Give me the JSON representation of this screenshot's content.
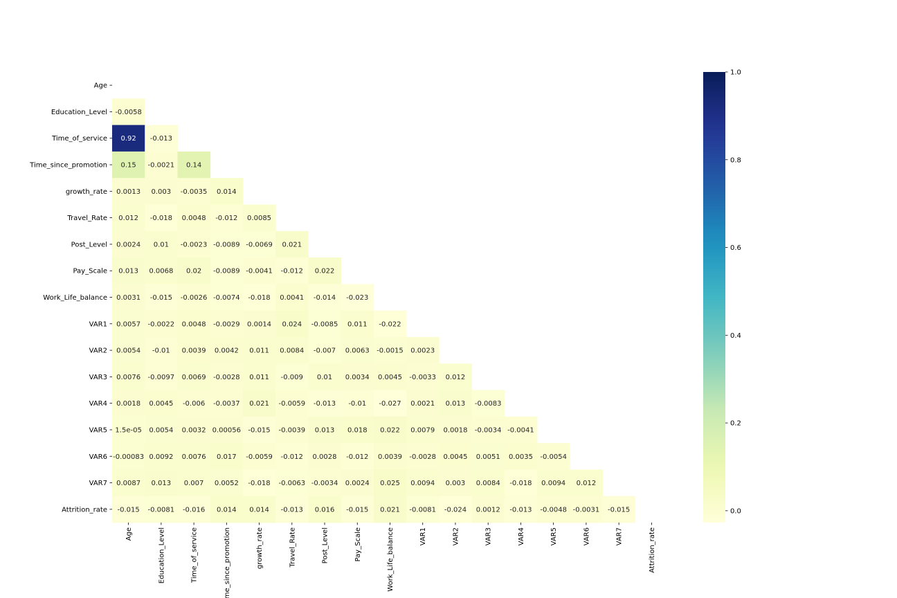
{
  "chart_data": {
    "type": "heatmap",
    "title": "",
    "xlabel": "",
    "ylabel": "",
    "mask": "upper-triangle-including-diagonal",
    "labels": [
      "Age",
      "Education_Level",
      "Time_of_service",
      "Time_since_promotion",
      "growth_rate",
      "Travel_Rate",
      "Post_Level",
      "Pay_Scale",
      "Work_Life_balance",
      "VAR1",
      "VAR2",
      "VAR3",
      "VAR4",
      "VAR5",
      "VAR6",
      "VAR7",
      "Attrition_rate"
    ],
    "rows": [
      [],
      [
        "-0.0058"
      ],
      [
        "0.92",
        "-0.013"
      ],
      [
        "0.15",
        "-0.0021",
        "0.14"
      ],
      [
        "0.0013",
        "0.003",
        "-0.0035",
        "0.014"
      ],
      [
        "0.012",
        "-0.018",
        "0.0048",
        "-0.012",
        "0.0085"
      ],
      [
        "0.0024",
        "0.01",
        "-0.0023",
        "-0.0089",
        "-0.0069",
        "0.021"
      ],
      [
        "0.013",
        "0.0068",
        "0.02",
        "-0.0089",
        "-0.0041",
        "-0.012",
        "0.022"
      ],
      [
        "0.0031",
        "-0.015",
        "-0.0026",
        "-0.0074",
        "-0.018",
        "0.0041",
        "-0.014",
        "-0.023"
      ],
      [
        "0.0057",
        "-0.0022",
        "0.0048",
        "-0.0029",
        "0.0014",
        "0.024",
        "-0.0085",
        "0.011",
        "-0.022"
      ],
      [
        "0.0054",
        "-0.01",
        "0.0039",
        "0.0042",
        "0.011",
        "0.0084",
        "-0.007",
        "0.0063",
        "-0.0015",
        "0.0023"
      ],
      [
        "0.0076",
        "-0.0097",
        "0.0069",
        "-0.0028",
        "0.011",
        "-0.009",
        "0.01",
        "0.0034",
        "0.0045",
        "-0.0033",
        "0.012"
      ],
      [
        "0.0018",
        "0.0045",
        "-0.006",
        "-0.0037",
        "0.021",
        "-0.0059",
        "-0.013",
        "-0.01",
        "-0.027",
        "0.0021",
        "0.013",
        "-0.0083"
      ],
      [
        "1.5e-05",
        "0.0054",
        "0.0032",
        "0.00056",
        "-0.015",
        "-0.0039",
        "0.013",
        "0.018",
        "0.022",
        "0.0079",
        "0.0018",
        "-0.0034",
        "-0.0041"
      ],
      [
        "-0.00083",
        "0.0092",
        "0.0076",
        "0.017",
        "-0.0059",
        "-0.012",
        "0.0028",
        "-0.012",
        "0.0039",
        "-0.0028",
        "0.0045",
        "0.0051",
        "0.0035",
        "-0.0054"
      ],
      [
        "0.0087",
        "0.013",
        "0.007",
        "0.0052",
        "-0.018",
        "-0.0063",
        "-0.0034",
        "0.0024",
        "0.025",
        "0.0094",
        "0.003",
        "0.0084",
        "-0.018",
        "0.0094",
        "0.012"
      ],
      [
        "-0.015",
        "-0.0081",
        "-0.016",
        "0.014",
        "0.014",
        "-0.013",
        "0.016",
        "-0.015",
        "0.021",
        "-0.0081",
        "-0.024",
        "0.0012",
        "-0.013",
        "-0.0048",
        "-0.0031",
        "-0.015"
      ]
    ],
    "colorbar": {
      "colormap": "YlGnBu",
      "range": [
        -0.027,
        1.0
      ],
      "ticks": [
        "0.0",
        "0.2",
        "0.4",
        "0.6",
        "0.8",
        "1.0"
      ]
    },
    "grid": false
  }
}
